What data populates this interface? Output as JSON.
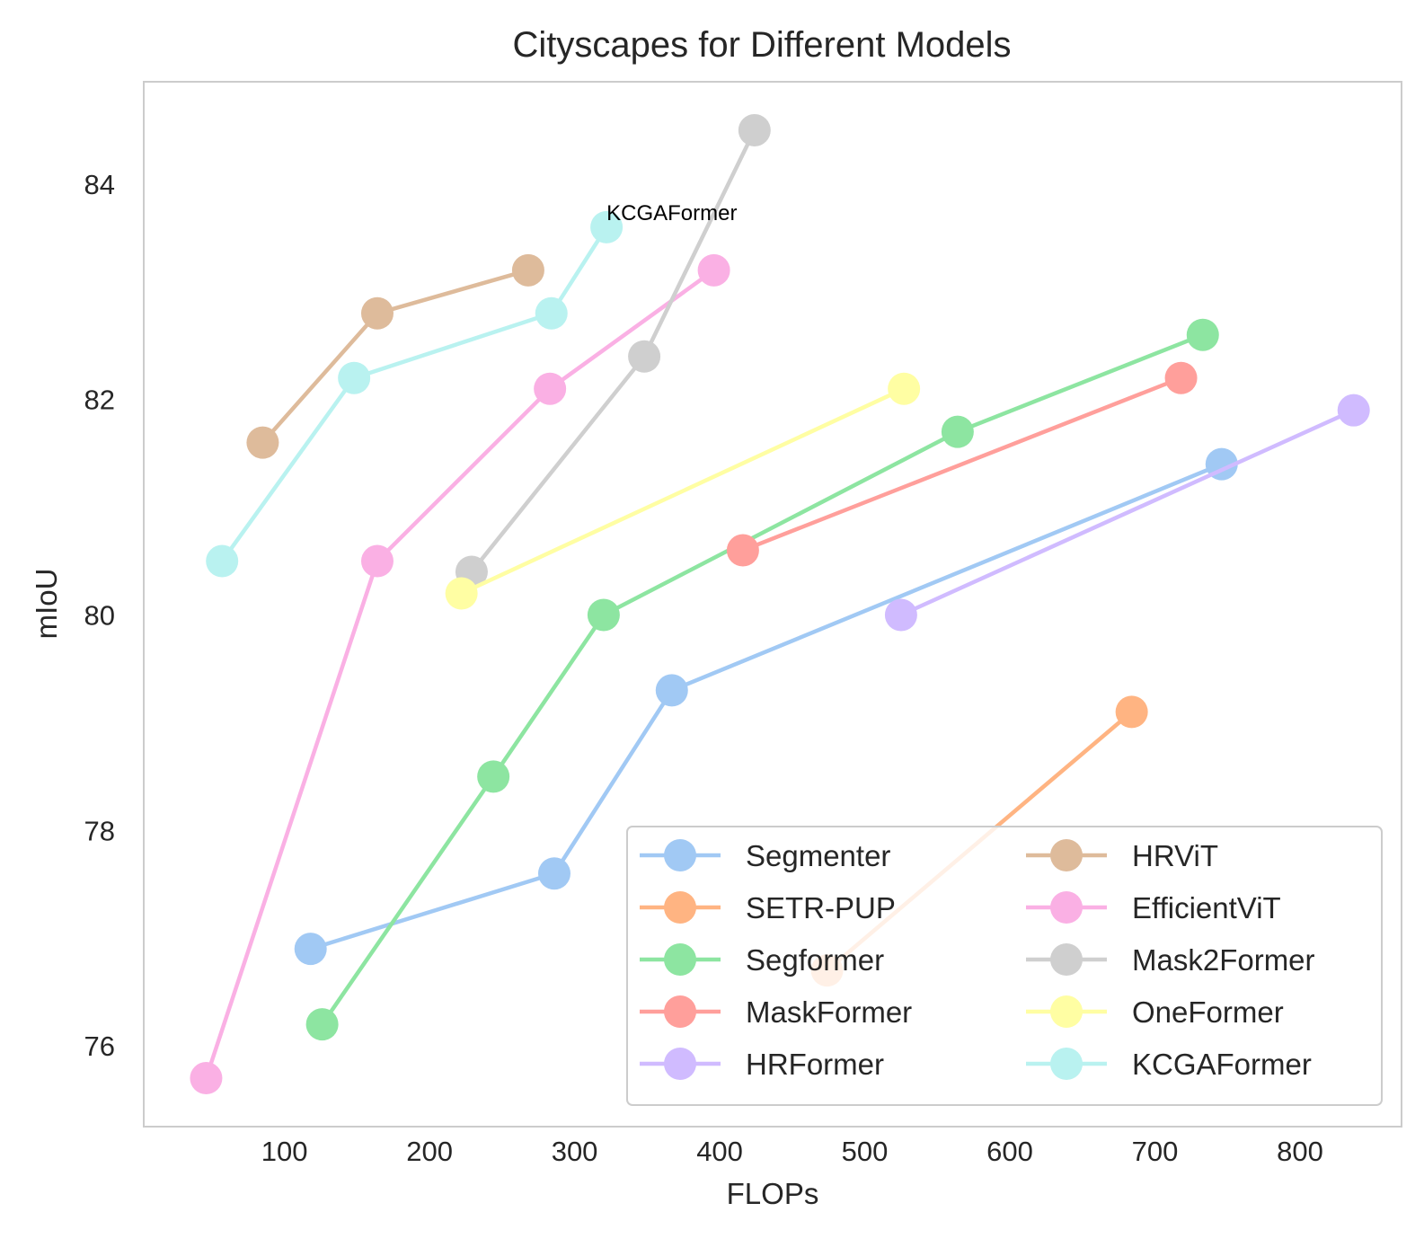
{
  "chart_data": {
    "type": "line",
    "title": "Cityscapes for Different Models",
    "xlabel": "FLOPs",
    "ylabel": "mIoU",
    "xlim": [
      3,
      870
    ],
    "ylim": [
      75.25,
      84.95
    ],
    "xticks": [
      100,
      200,
      300,
      400,
      500,
      600,
      700,
      800
    ],
    "yticks": [
      76,
      78,
      80,
      82,
      84
    ],
    "grid": false,
    "legend": {
      "position": "lower-right",
      "columns": 2
    },
    "series": [
      {
        "name": "Segmenter",
        "color": "#a1c9f4",
        "x": [
          118,
          286,
          367,
          746
        ],
        "y": [
          76.9,
          77.6,
          79.3,
          81.4
        ]
      },
      {
        "name": "SETR-PUP",
        "color": "#ffb482",
        "x": [
          474,
          684
        ],
        "y": [
          76.7,
          79.1
        ]
      },
      {
        "name": "Segformer",
        "color": "#8de5a1",
        "x": [
          126,
          244,
          320,
          564,
          733
        ],
        "y": [
          76.2,
          78.5,
          80.0,
          81.7,
          82.6
        ]
      },
      {
        "name": "MaskFormer",
        "color": "#ff9f9b",
        "x": [
          416,
          718
        ],
        "y": [
          80.6,
          82.2
        ]
      },
      {
        "name": "HRFormer",
        "color": "#d0bbff",
        "x": [
          525,
          837
        ],
        "y": [
          80.0,
          81.9
        ]
      },
      {
        "name": "HRViT",
        "color": "#debb9b",
        "x": [
          85,
          164,
          268
        ],
        "y": [
          81.6,
          82.8,
          83.2
        ]
      },
      {
        "name": "EfficientViT",
        "color": "#fab0e4",
        "x": [
          46,
          164,
          283,
          396
        ],
        "y": [
          75.7,
          80.5,
          82.1,
          83.2
        ]
      },
      {
        "name": "Mask2Former",
        "color": "#cfcfcf",
        "x": [
          229,
          348,
          424
        ],
        "y": [
          80.4,
          82.4,
          84.5
        ]
      },
      {
        "name": "OneFormer",
        "color": "#fffea3",
        "x": [
          222,
          527
        ],
        "y": [
          80.2,
          82.1
        ]
      },
      {
        "name": "KCGAFormer",
        "color": "#b9f2f0",
        "x": [
          57,
          148,
          284,
          322
        ],
        "y": [
          80.5,
          82.2,
          82.8,
          83.6
        ]
      }
    ],
    "annotations": [
      {
        "text": "KCGAFormer",
        "x": 322,
        "y": 83.6
      }
    ]
  }
}
